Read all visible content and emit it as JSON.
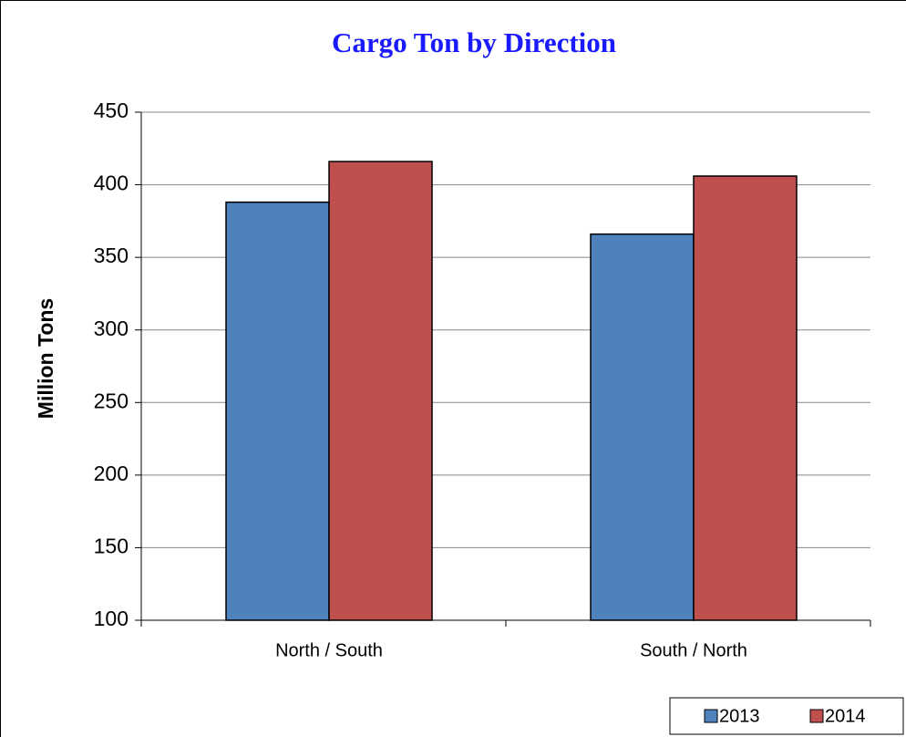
{
  "chart_data": {
    "type": "bar",
    "title": "Cargo Ton by Direction",
    "y_label": "Million Tons",
    "categories": [
      "North / South",
      "South / North"
    ],
    "series": [
      {
        "name": "2013",
        "color": "#4f81bd",
        "values": [
          388,
          366
        ]
      },
      {
        "name": "2014",
        "color": "#c0504d",
        "values": [
          416,
          406
        ]
      }
    ],
    "ylim": [
      100,
      450
    ],
    "yticks": [
      100,
      150,
      200,
      250,
      300,
      350,
      400,
      450
    ],
    "grid": true,
    "legend": "bottom-right"
  }
}
